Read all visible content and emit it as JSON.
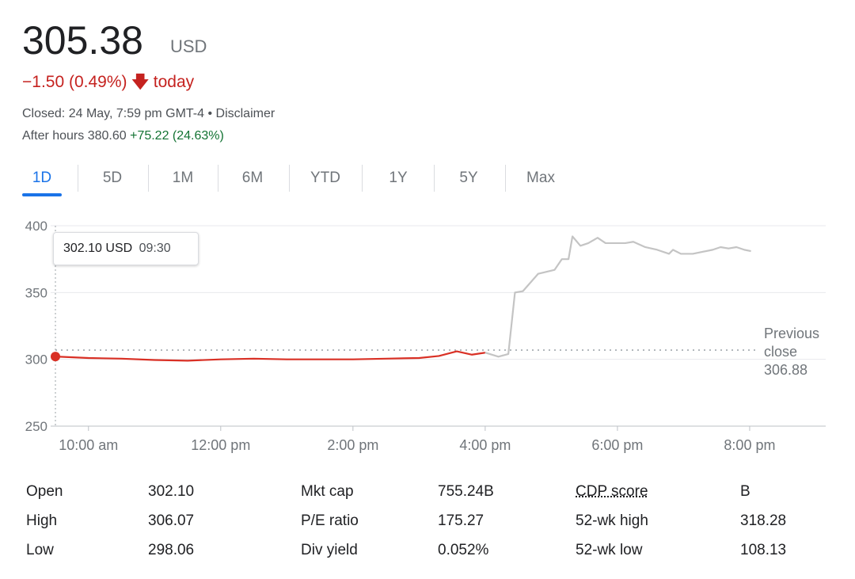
{
  "header": {
    "price": "305.38",
    "currency": "USD",
    "change": "−1.50 (0.49%)",
    "change_suffix": "today",
    "status": "Closed: 24 May, 7:59 pm GMT-4 • Disclaimer",
    "after_hours": "After hours 380.60",
    "after_hours_change": "+75.22 (24.63%)"
  },
  "tabs": {
    "items": [
      "1D",
      "5D",
      "1M",
      "6M",
      "YTD",
      "1Y",
      "5Y",
      "Max"
    ],
    "selected": 0
  },
  "chart_data": {
    "type": "line",
    "xlim": [
      9.5,
      21.15
    ],
    "ylim": [
      250,
      400
    ],
    "yticks": [
      250,
      300,
      350,
      400
    ],
    "grid": true,
    "xticks": [
      {
        "value": 10,
        "label": "10:00 am"
      },
      {
        "value": 12,
        "label": "12:00 pm"
      },
      {
        "value": 14,
        "label": "2:00 pm"
      },
      {
        "value": 16,
        "label": "4:00 pm"
      },
      {
        "value": 18,
        "label": "6:00 pm"
      },
      {
        "value": 20,
        "label": "8:00 pm"
      }
    ],
    "series": [
      {
        "color": "#d93025",
        "x": [
          9.5,
          10,
          10.5,
          11,
          11.5,
          12,
          12.5,
          13,
          13.5,
          14,
          14.5,
          15,
          15.3,
          15.57,
          15.8,
          16
        ],
        "values": [
          302.1,
          301,
          300.5,
          299.5,
          299,
          300,
          300.5,
          300,
          300,
          300,
          300.5,
          301,
          302.5,
          306,
          303.5,
          305
        ]
      },
      {
        "color": "#c4c4c4",
        "x": [
          16,
          16.2,
          16.35,
          16.45,
          16.57,
          16.8,
          17.05,
          17.16,
          17.26,
          17.32,
          17.44,
          17.56,
          17.7,
          17.82,
          18.12,
          18.24,
          18.42,
          18.6,
          18.78,
          18.84,
          18.96,
          19.14,
          19.44,
          19.56,
          19.68,
          19.8,
          19.92,
          20.02
        ],
        "values": [
          305,
          302,
          304,
          350,
          351,
          364,
          367,
          375,
          375,
          392,
          385,
          387,
          391,
          387,
          387,
          388,
          384,
          382,
          379,
          382,
          379,
          379,
          382,
          384,
          383,
          384,
          382,
          381
        ]
      }
    ],
    "tooltip": {
      "value": "302.10 USD",
      "time": "09:30"
    },
    "previous_close": {
      "label": "Previous close",
      "value": 306.88
    }
  },
  "stats": [
    {
      "label": "Open",
      "value": "302.10"
    },
    {
      "label": "High",
      "value": "306.07"
    },
    {
      "label": "Low",
      "value": "298.06"
    },
    {
      "label": "Mkt cap",
      "value": "755.24B"
    },
    {
      "label": "P/E ratio",
      "value": "175.27"
    },
    {
      "label": "Div yield",
      "value": "0.052%"
    },
    {
      "label": "CDP score",
      "value": "B"
    },
    {
      "label": "52-wk high",
      "value": "318.28"
    },
    {
      "label": "52-wk low",
      "value": "108.13"
    }
  ]
}
